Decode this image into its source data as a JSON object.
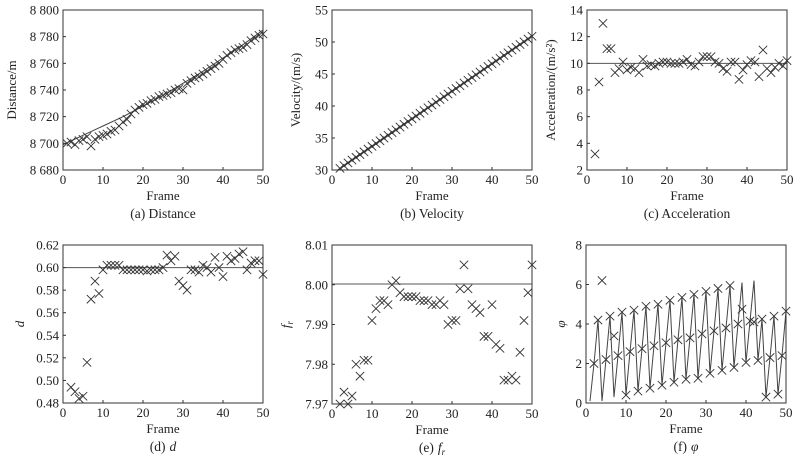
{
  "chart_data": [
    {
      "id": "a",
      "type": "scatter",
      "caption": "(a) Distance",
      "caption_var": "",
      "caption_sub": "",
      "xlabel": "Frame",
      "ylabel": "Distance/m",
      "ylabel_italic": false,
      "ylabel_sub": "",
      "xlim": [
        0,
        50
      ],
      "ylim": [
        8680,
        8800
      ],
      "xticks": [
        0,
        10,
        20,
        30,
        40,
        50
      ],
      "xtick_labels": [
        "0",
        "10",
        "20",
        "30",
        "40",
        "50"
      ],
      "yticks": [
        8680,
        8700,
        8720,
        8740,
        8760,
        8780,
        8800
      ],
      "ytick_labels": [
        "8 680",
        "8 700",
        "8 720",
        "8 740",
        "8 760",
        "8 780",
        "8 800"
      ],
      "marker_start_frame": 1,
      "markers": [
        8700,
        8701,
        8699,
        8702,
        8703,
        8705,
        8698,
        8703,
        8705,
        8706,
        8707,
        8709,
        8710,
        8713,
        8716,
        8718,
        8722,
        8725,
        8727,
        8729,
        8730,
        8732,
        8733,
        8735,
        8736,
        8737,
        8738,
        8740,
        8741,
        8740,
        8745,
        8747,
        8749,
        8750,
        8752,
        8754,
        8756,
        8758,
        8760,
        8763,
        8766,
        8768,
        8770,
        8771,
        8772,
        8774,
        8777,
        8779,
        8781,
        8782
      ],
      "lines": [
        {
          "name": "fit",
          "x": [
            0,
            5,
            10,
            15,
            20,
            25,
            30,
            35,
            40,
            45,
            50
          ],
          "y": [
            8699,
            8706,
            8713,
            8720,
            8728,
            8736,
            8745,
            8754,
            8764,
            8774,
            8785
          ]
        }
      ],
      "reference": null
    },
    {
      "id": "b",
      "type": "scatter",
      "caption": "(b) Velocity",
      "caption_var": "",
      "caption_sub": "",
      "xlabel": "Frame",
      "ylabel": "Velocity/(m/s)",
      "ylabel_italic": false,
      "ylabel_sub": "",
      "xlim": [
        0,
        50
      ],
      "ylim": [
        30,
        55
      ],
      "xticks": [
        0,
        10,
        20,
        30,
        40,
        50
      ],
      "xtick_labels": [
        "0",
        "10",
        "20",
        "30",
        "40",
        "50"
      ],
      "yticks": [
        30,
        35,
        40,
        45,
        50,
        55
      ],
      "ytick_labels": [
        "30",
        "35",
        "40",
        "45",
        "50",
        "55"
      ],
      "marker_start_frame": 2,
      "markers": [
        30.26,
        30.69,
        31.12,
        31.55,
        31.98,
        32.41,
        32.84,
        33.27,
        33.7,
        34.13,
        34.56,
        34.99,
        35.42,
        35.85,
        36.28,
        36.71,
        37.14,
        37.57,
        38.0,
        38.43,
        38.86,
        39.29,
        39.72,
        40.15,
        40.58,
        41.01,
        41.44,
        41.87,
        42.3,
        42.73,
        43.16,
        43.59,
        44.02,
        44.45,
        44.88,
        45.31,
        45.74,
        46.17,
        46.6,
        47.03,
        47.46,
        47.89,
        48.32,
        48.75,
        49.18,
        49.61,
        50.04,
        50.47,
        50.9
      ],
      "lines": [
        {
          "name": "fit",
          "x": [
            1.5,
            50
          ],
          "y": [
            30.05,
            50.9
          ]
        }
      ],
      "reference": null
    },
    {
      "id": "c",
      "type": "scatter",
      "caption": "(c) Acceleration",
      "caption_var": "",
      "caption_sub": "",
      "xlabel": "Frame",
      "ylabel": "Acceleration/(m/s²)",
      "ylabel_italic": false,
      "ylabel_sub": "",
      "xlim": [
        0,
        50
      ],
      "ylim": [
        2,
        14
      ],
      "xticks": [
        0,
        10,
        20,
        30,
        40,
        50
      ],
      "xtick_labels": [
        "0",
        "10",
        "20",
        "30",
        "40",
        "50"
      ],
      "yticks": [
        2,
        4,
        6,
        8,
        10,
        12,
        14
      ],
      "ytick_labels": [
        "2",
        "4",
        "6",
        "8",
        "10",
        "12",
        "14"
      ],
      "marker_start_frame": 2,
      "markers": [
        3.2,
        8.6,
        13.0,
        11.1,
        11.1,
        9.3,
        9.6,
        10.1,
        9.5,
        9.7,
        9.6,
        9.3,
        10.3,
        9.8,
        9.9,
        9.8,
        10.0,
        10.1,
        10.1,
        10.0,
        10.0,
        10.0,
        10.1,
        10.3,
        9.9,
        9.8,
        10.1,
        10.5,
        10.5,
        10.5,
        10.1,
        10.0,
        9.6,
        9.4,
        10.1,
        10.1,
        8.8,
        9.5,
        9.9,
        10.2,
        10.1,
        9.0,
        11.0,
        9.6,
        9.3,
        9.7,
        10.0,
        9.8,
        10.2
      ],
      "lines": [],
      "reference": 10
    },
    {
      "id": "d",
      "type": "scatter",
      "caption": "(d)",
      "caption_var": "d",
      "caption_sub": "",
      "xlabel": "Frame",
      "ylabel": "d",
      "ylabel_italic": true,
      "ylabel_sub": "",
      "xlim": [
        0,
        50
      ],
      "ylim": [
        0.48,
        0.62
      ],
      "xticks": [
        0,
        10,
        20,
        30,
        40,
        50
      ],
      "xtick_labels": [
        "0",
        "10",
        "20",
        "30",
        "40",
        "50"
      ],
      "yticks": [
        0.48,
        0.5,
        0.52,
        0.54,
        0.56,
        0.58,
        0.6,
        0.62
      ],
      "ytick_labels": [
        "0.48",
        "0.50",
        "0.52",
        "0.54",
        "0.56",
        "0.58",
        "0.60",
        "0.62"
      ],
      "marker_start_frame": 2,
      "markers": [
        0.494,
        0.49,
        0.484,
        0.486,
        0.516,
        0.572,
        0.588,
        0.577,
        0.598,
        0.602,
        0.602,
        0.602,
        0.602,
        0.598,
        0.598,
        0.598,
        0.598,
        0.598,
        0.598,
        0.597,
        0.598,
        0.598,
        0.598,
        0.6,
        0.611,
        0.606,
        0.61,
        0.588,
        0.584,
        0.58,
        0.598,
        0.598,
        0.596,
        0.602,
        0.6,
        0.596,
        0.609,
        0.6,
        0.592,
        0.61,
        0.606,
        0.608,
        0.612,
        0.614,
        0.598,
        0.604,
        0.606,
        0.606,
        0.594
      ],
      "lines": [],
      "reference": 0.6
    },
    {
      "id": "e",
      "type": "scatter",
      "caption": "(e)",
      "caption_var": "f",
      "caption_sub": "r",
      "xlabel": "Frame",
      "ylabel": "f",
      "ylabel_italic": true,
      "ylabel_sub": "r",
      "xlim": [
        0,
        50
      ],
      "ylim": [
        7.97,
        8.01
      ],
      "xticks": [
        0,
        10,
        20,
        30,
        40,
        50
      ],
      "xtick_labels": [
        "0",
        "10",
        "20",
        "30",
        "40",
        "50"
      ],
      "yticks": [
        7.97,
        7.98,
        7.99,
        8.0,
        8.01
      ],
      "ytick_labels": [
        "7.97",
        "7.98",
        "7.99",
        "8.00",
        "8.01"
      ],
      "marker_start_frame": 2,
      "markers": [
        7.97,
        7.973,
        7.97,
        7.972,
        7.98,
        7.977,
        7.981,
        7.981,
        7.991,
        7.994,
        7.996,
        7.996,
        7.995,
        8.0,
        8.001,
        7.998,
        7.997,
        7.997,
        7.997,
        7.997,
        7.996,
        7.996,
        7.996,
        7.995,
        7.995,
        7.996,
        7.995,
        7.99,
        7.991,
        7.991,
        7.999,
        8.005,
        7.999,
        7.995,
        7.994,
        7.993,
        7.987,
        7.987,
        7.995,
        7.985,
        7.984,
        7.976,
        7.976,
        7.977,
        7.976,
        7.983,
        7.991,
        7.998,
        8.005
      ],
      "lines": [],
      "reference": 8.0002
    },
    {
      "id": "f",
      "type": "line",
      "caption": "(f)",
      "caption_var": "φ",
      "caption_sub": "",
      "xlabel": "Frame",
      "ylabel": "φ",
      "ylabel_italic": true,
      "ylabel_sub": "",
      "xlim": [
        0,
        50
      ],
      "ylim": [
        0,
        8
      ],
      "xticks": [
        0,
        10,
        20,
        30,
        40,
        50
      ],
      "xtick_labels": [
        "0",
        "10",
        "20",
        "30",
        "40",
        "50"
      ],
      "yticks": [
        0,
        2,
        4,
        6,
        8
      ],
      "ytick_labels": [
        "0",
        "2",
        "4",
        "6",
        "8"
      ],
      "marker_start_frame": 2,
      "markers": [
        2.0,
        4.2,
        6.2,
        2.2,
        4.4,
        3.4,
        2.4,
        4.6,
        0.4,
        2.6,
        4.7,
        0.6,
        2.75,
        4.9,
        0.75,
        2.9,
        5.0,
        0.9,
        3.05,
        5.2,
        1.05,
        3.2,
        5.35,
        1.2,
        3.3,
        5.5,
        1.25,
        3.5,
        5.65,
        1.5,
        3.65,
        5.8,
        1.65,
        3.8,
        5.95,
        1.8,
        4.0,
        4.75,
        2.05,
        4.15,
        4.1,
        2.15,
        4.25,
        0.3,
        2.3,
        4.4,
        0.45,
        2.4,
        4.65
      ],
      "lines": [
        {
          "name": "phase",
          "x": [
            1,
            2,
            3,
            4,
            5,
            6,
            7,
            8,
            9,
            10,
            11,
            12,
            13,
            14,
            15,
            16,
            17,
            18,
            19,
            20,
            21,
            22,
            23,
            24,
            25,
            26,
            27,
            28,
            29,
            30,
            31,
            32,
            33,
            34,
            35,
            36,
            37,
            38,
            39,
            40,
            41,
            42,
            43,
            44,
            45,
            46,
            47,
            48,
            49,
            50
          ],
          "y": [
            0.1,
            2.0,
            4.2,
            0.1,
            2.2,
            4.4,
            0.3,
            2.4,
            4.6,
            0.4,
            2.6,
            4.7,
            0.6,
            2.75,
            4.9,
            0.75,
            2.9,
            5.0,
            0.9,
            3.05,
            5.2,
            1.05,
            3.2,
            5.35,
            1.2,
            3.3,
            5.5,
            1.25,
            3.5,
            5.65,
            1.5,
            3.65,
            5.8,
            1.65,
            3.8,
            5.95,
            1.8,
            4.0,
            6.1,
            2.05,
            4.15,
            6.2,
            2.15,
            4.25,
            0.3,
            2.3,
            4.4,
            0.45,
            2.4,
            4.65
          ]
        }
      ],
      "reference": null
    }
  ]
}
